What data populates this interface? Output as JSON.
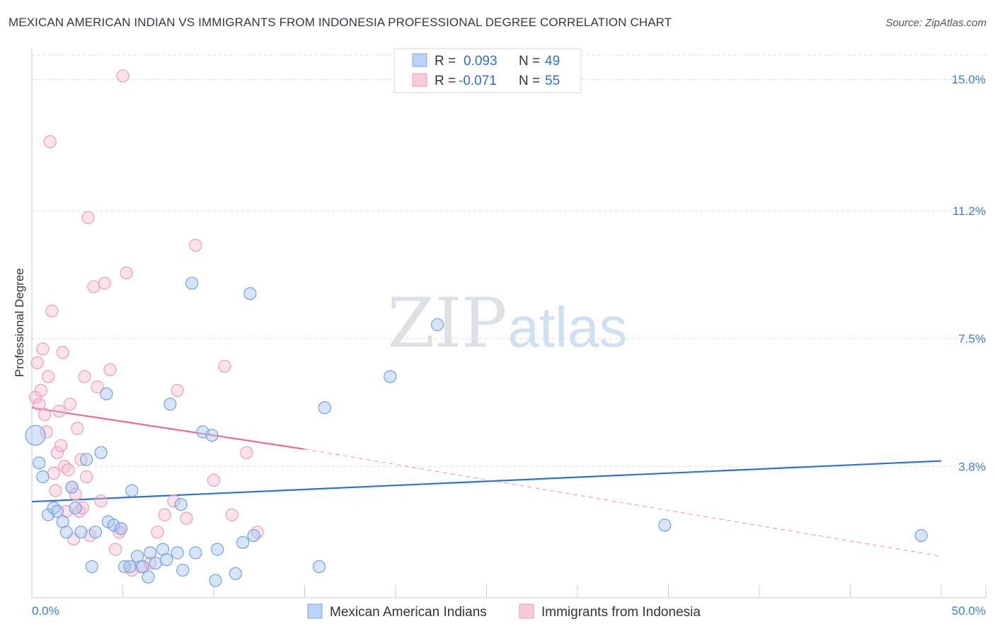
{
  "title": "MEXICAN AMERICAN INDIAN VS IMMIGRANTS FROM INDONESIA PROFESSIONAL DEGREE CORRELATION CHART",
  "source": "Source: ZipAtlas.com",
  "watermark": {
    "zip": "ZIP",
    "atlas": "atlas"
  },
  "legend": {
    "r_label": "R =",
    "n_label": "N =",
    "rows": [
      {
        "r": "0.093",
        "n": "49",
        "color": "#a9c6f2"
      },
      {
        "r": "-0.071",
        "n": "55",
        "color": "#f6b8cc"
      }
    ]
  },
  "bottom_legend": [
    "Mexican American Indians",
    "Immigrants from Indonesia"
  ],
  "chart_data": {
    "type": "scatter",
    "title": "MEXICAN AMERICAN INDIAN VS IMMIGRANTS FROM INDONESIA PROFESSIONAL DEGREE CORRELATION CHART",
    "xlabel": "",
    "ylabel": "Professional Degree",
    "xlim": [
      0,
      50
    ],
    "ylim": [
      0,
      15.7
    ],
    "x_tick_labels": [
      "0.0%",
      "50.0%"
    ],
    "y_ticks": [
      3.8,
      7.5,
      11.2,
      15.0
    ],
    "y_tick_labels": [
      "3.8%",
      "7.5%",
      "11.2%",
      "15.0%"
    ],
    "grid": true,
    "series": [
      {
        "name": "Mexican American Indians",
        "color": "#6fa1e6",
        "points": [
          [
            0.2,
            4.7
          ],
          [
            0.4,
            3.9
          ],
          [
            0.6,
            3.5
          ],
          [
            0.9,
            2.4
          ],
          [
            1.2,
            2.6
          ],
          [
            1.4,
            2.5
          ],
          [
            1.7,
            2.2
          ],
          [
            1.9,
            1.9
          ],
          [
            2.2,
            3.2
          ],
          [
            2.4,
            2.6
          ],
          [
            2.7,
            1.9
          ],
          [
            3.0,
            4.0
          ],
          [
            3.3,
            0.9
          ],
          [
            3.5,
            1.9
          ],
          [
            3.8,
            4.2
          ],
          [
            4.1,
            5.9
          ],
          [
            4.2,
            2.2
          ],
          [
            4.5,
            2.1
          ],
          [
            4.9,
            2.0
          ],
          [
            5.1,
            0.9
          ],
          [
            5.4,
            0.9
          ],
          [
            5.5,
            3.1
          ],
          [
            5.8,
            1.2
          ],
          [
            6.1,
            0.9
          ],
          [
            6.4,
            0.6
          ],
          [
            6.5,
            1.3
          ],
          [
            6.8,
            1.0
          ],
          [
            7.2,
            1.4
          ],
          [
            7.4,
            1.1
          ],
          [
            7.6,
            5.6
          ],
          [
            8.0,
            1.3
          ],
          [
            8.2,
            2.7
          ],
          [
            8.3,
            0.8
          ],
          [
            8.8,
            9.1
          ],
          [
            9.0,
            1.3
          ],
          [
            9.4,
            4.8
          ],
          [
            9.9,
            4.7
          ],
          [
            10.1,
            0.5
          ],
          [
            10.2,
            1.4
          ],
          [
            11.2,
            0.7
          ],
          [
            11.6,
            1.6
          ],
          [
            12.0,
            8.8
          ],
          [
            12.2,
            1.8
          ],
          [
            15.8,
            0.9
          ],
          [
            16.1,
            5.5
          ],
          [
            19.7,
            6.4
          ],
          [
            22.3,
            7.9
          ],
          [
            34.8,
            2.1
          ],
          [
            48.9,
            1.8
          ]
        ]
      },
      {
        "name": "Immigrants from Indonesia",
        "color": "#f29bb8",
        "points": [
          [
            0.2,
            5.8
          ],
          [
            0.3,
            6.8
          ],
          [
            0.4,
            5.6
          ],
          [
            0.5,
            6.0
          ],
          [
            0.6,
            7.2
          ],
          [
            0.7,
            5.3
          ],
          [
            0.8,
            4.8
          ],
          [
            0.9,
            6.4
          ],
          [
            1.0,
            13.2
          ],
          [
            1.1,
            8.3
          ],
          [
            1.2,
            3.6
          ],
          [
            1.3,
            3.1
          ],
          [
            1.4,
            4.2
          ],
          [
            1.5,
            5.4
          ],
          [
            1.6,
            4.4
          ],
          [
            1.7,
            7.1
          ],
          [
            1.8,
            3.8
          ],
          [
            1.9,
            2.5
          ],
          [
            2.0,
            3.7
          ],
          [
            2.1,
            5.6
          ],
          [
            2.2,
            3.2
          ],
          [
            2.3,
            1.7
          ],
          [
            2.4,
            3.0
          ],
          [
            2.5,
            4.9
          ],
          [
            2.6,
            2.5
          ],
          [
            2.7,
            4.0
          ],
          [
            2.8,
            2.6
          ],
          [
            2.9,
            6.4
          ],
          [
            3.0,
            3.5
          ],
          [
            3.1,
            11.0
          ],
          [
            3.2,
            1.8
          ],
          [
            3.4,
            9.0
          ],
          [
            3.6,
            6.1
          ],
          [
            3.8,
            2.8
          ],
          [
            4.0,
            9.1
          ],
          [
            4.3,
            6.6
          ],
          [
            4.6,
            1.4
          ],
          [
            4.8,
            1.9
          ],
          [
            4.9,
            2.0
          ],
          [
            5.0,
            15.1
          ],
          [
            5.2,
            9.4
          ],
          [
            5.5,
            0.8
          ],
          [
            6.0,
            0.9
          ],
          [
            6.5,
            1.0
          ],
          [
            6.9,
            1.9
          ],
          [
            7.3,
            2.4
          ],
          [
            7.8,
            2.8
          ],
          [
            8.0,
            6.0
          ],
          [
            8.5,
            2.3
          ],
          [
            9.0,
            10.2
          ],
          [
            10.0,
            3.4
          ],
          [
            10.6,
            6.7
          ],
          [
            11.0,
            2.4
          ],
          [
            11.8,
            4.2
          ],
          [
            12.4,
            1.9
          ]
        ]
      }
    ],
    "trendlines": [
      {
        "series": "Mexican American Indians",
        "x": [
          0,
          50
        ],
        "y": [
          2.78,
          3.96
        ],
        "style": "solid"
      },
      {
        "series": "Immigrants from Indonesia",
        "x": [
          0,
          15
        ],
        "y": [
          5.5,
          4.3
        ],
        "style": "solid"
      },
      {
        "series": "Immigrants from Indonesia",
        "x": [
          15,
          50
        ],
        "y": [
          4.3,
          1.2
        ],
        "style": "dashed"
      }
    ]
  }
}
